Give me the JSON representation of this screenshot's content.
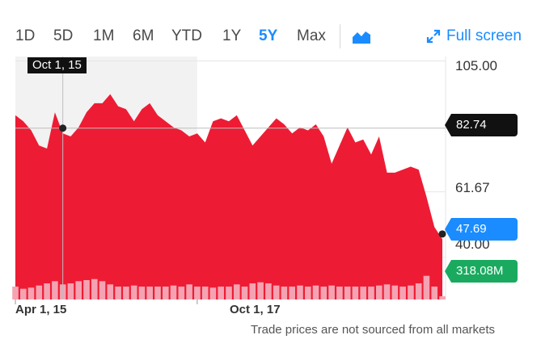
{
  "toolbar": {
    "ranges": [
      "1D",
      "5D",
      "1M",
      "6M",
      "YTD",
      "1Y",
      "5Y",
      "Max"
    ],
    "active_range": "5Y",
    "chart_type_icon": "area-chart-icon",
    "fullscreen_icon": "expand-arrows-icon",
    "fullscreen_label": "Full screen",
    "accent_color": "#1a8cff"
  },
  "crosshair": {
    "date_label": "Oct 1, 15",
    "price_label": "82.74"
  },
  "current_price_label": "47.69",
  "volume_label": "318.08M",
  "y_ticks": [
    "105.00",
    "61.67",
    "40.00"
  ],
  "x_ticks": [
    "Apr 1, 15",
    "Oct 1, 17"
  ],
  "disclaimer": "Trade prices are not sourced from all markets",
  "chart_data": {
    "type": "area",
    "ylim": [
      26,
      107
    ],
    "y_ticks": [
      105.0,
      61.67,
      40.0
    ],
    "price_series": {
      "color": "#ed1c34",
      "values": [
        87,
        85,
        82,
        77,
        76,
        88,
        81,
        80,
        83,
        88,
        91,
        91,
        94,
        90,
        89,
        85,
        89,
        91,
        87,
        85,
        83,
        82,
        80,
        81,
        78,
        85,
        86,
        85,
        87,
        82,
        77,
        80,
        83,
        86,
        84,
        81,
        83,
        82,
        84,
        80,
        71,
        77,
        83,
        78,
        79,
        74,
        80,
        68,
        68,
        69,
        70,
        69,
        60,
        50,
        46
      ]
    },
    "volume_series": {
      "color": "#f5a3b2",
      "values": [
        12,
        10,
        11,
        13,
        15,
        17,
        14,
        15,
        17,
        18,
        19,
        17,
        14,
        12,
        12,
        13,
        12,
        12,
        12,
        12,
        13,
        12,
        14,
        12,
        12,
        11,
        12,
        12,
        14,
        12,
        15,
        16,
        15,
        13,
        12,
        12,
        13,
        12,
        13,
        12,
        13,
        12,
        12,
        12,
        12,
        12,
        13,
        14,
        13,
        12,
        13,
        15,
        22,
        12,
        3
      ]
    },
    "highlight_range_end_index": 23,
    "crosshair_index": 6,
    "reference_line_value": 82.74,
    "current_value": 47.69,
    "x_tick_indices": [
      0,
      23
    ]
  }
}
